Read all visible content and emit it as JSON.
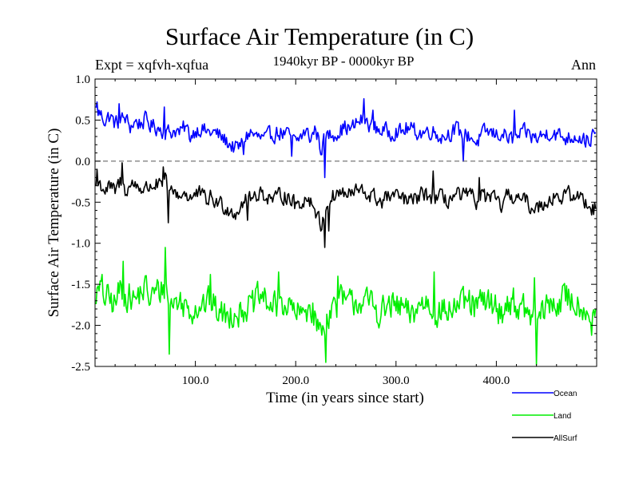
{
  "header": {
    "title": "Surface Air Temperature (in C)",
    "experiment": "Expt = xqfvh-xqfua",
    "period": "1940kyr BP - 0000kyr BP",
    "season": "Ann"
  },
  "chart_data": {
    "type": "line",
    "xlabel": "Time (in years since start)",
    "ylabel": "Surface Air Temperature (in C)",
    "xlim": [
      0,
      500
    ],
    "ylim": [
      -2.5,
      1.0
    ],
    "x_ticks": [
      100,
      200,
      300,
      400
    ],
    "x_tick_labels": [
      "100.0",
      "200.0",
      "300.0",
      "400.0"
    ],
    "y_ticks": [
      -2.5,
      -2.0,
      -1.5,
      -1.0,
      -0.5,
      0.0,
      0.5,
      1.0
    ],
    "y_tick_labels": [
      "-2.5",
      "-2.0",
      "-1.5",
      "-1.0",
      "-0.5",
      "0.0",
      "0.5",
      "1.0"
    ],
    "zero_line": true,
    "legend_position": "below-right",
    "series": [
      {
        "name": "Ocean",
        "color": "#0000ff",
        "x_step": 5,
        "values": [
          0.62,
          0.58,
          0.5,
          0.55,
          0.45,
          0.5,
          0.52,
          0.42,
          0.48,
          0.46,
          0.5,
          0.44,
          0.42,
          0.4,
          0.36,
          0.35,
          0.38,
          0.34,
          0.42,
          0.3,
          0.38,
          0.4,
          0.36,
          0.35,
          0.34,
          0.3,
          0.25,
          0.2,
          0.15,
          0.18,
          0.3,
          0.35,
          0.3,
          0.28,
          0.26,
          0.32,
          0.34,
          0.35,
          0.32,
          0.3,
          0.22,
          0.3,
          0.36,
          0.28,
          0.4,
          0.15,
          0.3,
          0.32,
          0.35,
          0.38,
          0.42,
          0.38,
          0.45,
          0.5,
          0.48,
          0.44,
          0.4,
          0.38,
          0.36,
          0.35,
          0.38,
          0.34,
          0.4,
          0.38,
          0.36,
          0.34,
          0.36,
          0.38,
          0.34,
          0.3,
          0.32,
          0.36,
          0.38,
          0.34,
          0.32,
          0.3,
          0.22,
          0.3,
          0.36,
          0.34,
          0.32,
          0.34,
          0.3,
          0.26,
          0.28,
          0.32,
          0.35,
          0.3,
          0.28,
          0.3,
          0.34,
          0.36,
          0.32,
          0.3,
          0.28,
          0.3,
          0.32,
          0.28,
          0.26,
          0.3
        ],
        "extremes": [
          [
            2,
            0.72
          ],
          [
            24,
            0.7
          ],
          [
            69,
            0.66
          ],
          [
            148,
            0.08
          ],
          [
            196,
            0.06
          ],
          [
            229,
            -0.2
          ],
          [
            268,
            0.76
          ],
          [
            277,
            0.62
          ],
          [
            367,
            0.0
          ],
          [
            418,
            0.62
          ],
          [
            494,
            0.18
          ]
        ]
      },
      {
        "name": "Land",
        "color": "#00ee00",
        "x_step": 5,
        "values": [
          -1.6,
          -1.62,
          -1.65,
          -1.7,
          -1.75,
          -1.55,
          -1.6,
          -1.65,
          -1.7,
          -1.6,
          -1.55,
          -1.68,
          -1.6,
          -1.58,
          -1.5,
          -1.75,
          -1.7,
          -1.72,
          -1.75,
          -1.8,
          -1.78,
          -1.72,
          -1.75,
          -1.7,
          -1.8,
          -1.85,
          -1.9,
          -1.85,
          -1.8,
          -1.85,
          -1.75,
          -1.8,
          -1.72,
          -1.65,
          -1.7,
          -1.75,
          -1.8,
          -1.7,
          -1.75,
          -1.8,
          -1.85,
          -1.9,
          -1.8,
          -1.75,
          -1.95,
          -2.1,
          -1.9,
          -1.8,
          -1.75,
          -1.7,
          -1.72,
          -1.75,
          -1.68,
          -1.7,
          -1.75,
          -1.72,
          -1.8,
          -1.85,
          -1.8,
          -1.75,
          -1.8,
          -1.78,
          -1.85,
          -1.9,
          -1.8,
          -1.75,
          -1.7,
          -1.78,
          -1.82,
          -1.8,
          -1.85,
          -1.8,
          -1.75,
          -1.78,
          -1.72,
          -1.75,
          -1.8,
          -1.72,
          -1.75,
          -1.7,
          -1.8,
          -1.85,
          -1.75,
          -1.7,
          -1.75,
          -1.8,
          -1.85,
          -1.9,
          -1.95,
          -1.85,
          -1.8,
          -1.72,
          -1.75,
          -1.7,
          -1.65,
          -1.7,
          -1.72,
          -1.75,
          -1.8,
          -1.85
        ],
        "extremes": [
          [
            7,
            -1.38
          ],
          [
            28,
            -1.22
          ],
          [
            70,
            -1.05
          ],
          [
            74,
            -2.35
          ],
          [
            115,
            -1.38
          ],
          [
            183,
            -1.35
          ],
          [
            230,
            -2.45
          ],
          [
            242,
            -1.4
          ],
          [
            338,
            -1.35
          ],
          [
            438,
            -1.42
          ],
          [
            440,
            -2.48
          ],
          [
            495,
            -2.12
          ]
        ]
      },
      {
        "name": "AllSurf",
        "color": "#000000",
        "x_step": 5,
        "values": [
          -0.3,
          -0.28,
          -0.35,
          -0.32,
          -0.38,
          -0.25,
          -0.35,
          -0.3,
          -0.28,
          -0.32,
          -0.35,
          -0.3,
          -0.28,
          -0.32,
          -0.25,
          -0.4,
          -0.38,
          -0.42,
          -0.38,
          -0.45,
          -0.42,
          -0.4,
          -0.48,
          -0.45,
          -0.5,
          -0.52,
          -0.55,
          -0.6,
          -0.62,
          -0.55,
          -0.45,
          -0.48,
          -0.4,
          -0.38,
          -0.42,
          -0.45,
          -0.48,
          -0.4,
          -0.42,
          -0.45,
          -0.55,
          -0.5,
          -0.45,
          -0.48,
          -0.6,
          -0.8,
          -0.55,
          -0.45,
          -0.4,
          -0.38,
          -0.4,
          -0.42,
          -0.35,
          -0.38,
          -0.4,
          -0.42,
          -0.45,
          -0.5,
          -0.45,
          -0.42,
          -0.45,
          -0.44,
          -0.48,
          -0.5,
          -0.45,
          -0.42,
          -0.4,
          -0.44,
          -0.46,
          -0.45,
          -0.48,
          -0.45,
          -0.42,
          -0.44,
          -0.42,
          -0.44,
          -0.48,
          -0.42,
          -0.44,
          -0.45,
          -0.5,
          -0.55,
          -0.45,
          -0.42,
          -0.44,
          -0.48,
          -0.5,
          -0.55,
          -0.58,
          -0.52,
          -0.48,
          -0.44,
          -0.42,
          -0.45,
          -0.4,
          -0.42,
          -0.44,
          -0.45,
          -0.5,
          -0.55
        ],
        "extremes": [
          [
            2,
            -0.1
          ],
          [
            27,
            -0.02
          ],
          [
            68,
            -0.07
          ],
          [
            73,
            -0.75
          ],
          [
            152,
            -0.72
          ],
          [
            229,
            -1.05
          ],
          [
            233,
            -0.85
          ],
          [
            337,
            -0.12
          ],
          [
            383,
            -0.2
          ],
          [
            497,
            -0.65
          ]
        ]
      }
    ]
  }
}
